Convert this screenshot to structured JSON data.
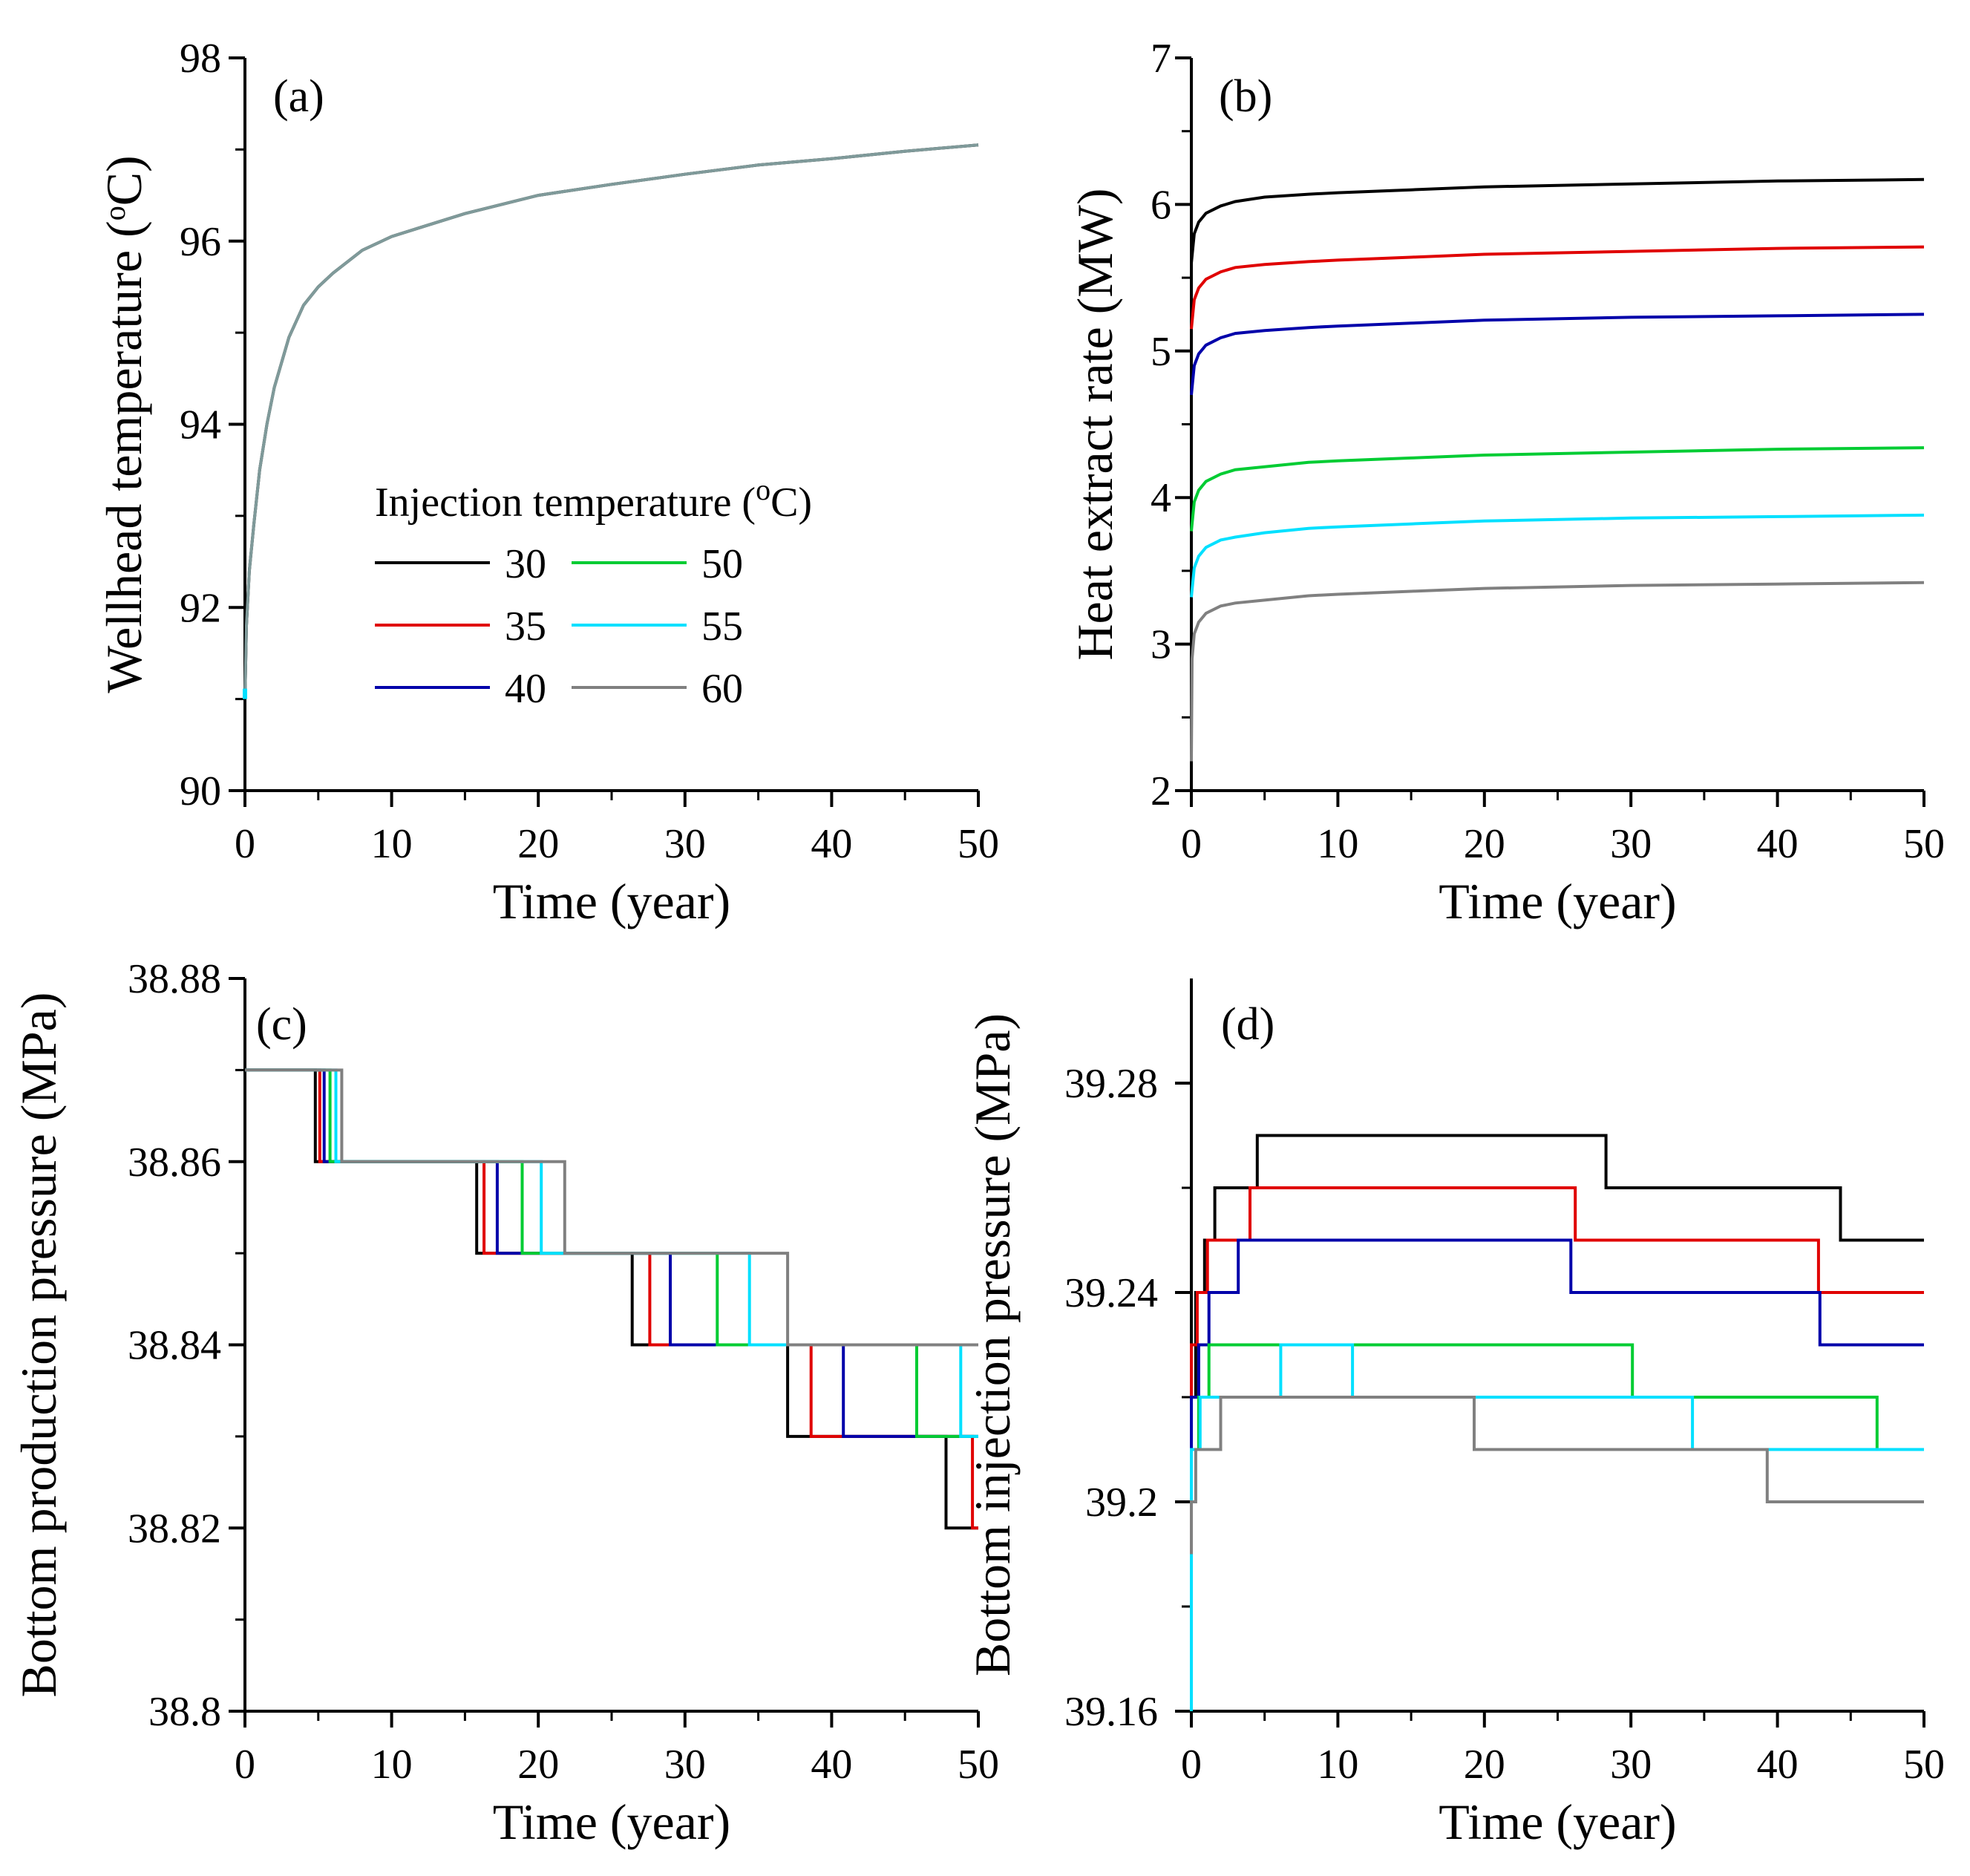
{
  "chart_data": [
    {
      "id": "a",
      "type": "line",
      "panel_label": "(a)",
      "xlabel": "Time (year)",
      "ylabel": "Wellhead temperature (°C)",
      "ylabel_parts": {
        "pre": "Wellhead temperature (",
        "sup": "o",
        "post": "C)"
      },
      "xlim": [
        0,
        50
      ],
      "ylim": [
        90,
        98
      ],
      "xticks": [
        0,
        10,
        20,
        30,
        40,
        50
      ],
      "yticks": [
        90,
        92,
        94,
        96,
        98
      ],
      "series": [
        {
          "name": "30",
          "color": "#000000",
          "x": [
            0,
            0.1,
            0.3,
            0.6,
            1,
            1.5,
            2,
            3,
            4,
            5,
            6,
            8,
            10,
            12,
            15,
            20,
            25,
            30,
            35,
            40,
            45,
            50
          ],
          "y": [
            91.0,
            91.8,
            92.4,
            92.9,
            93.5,
            94.0,
            94.4,
            94.95,
            95.3,
            95.5,
            95.65,
            95.9,
            96.05,
            96.15,
            96.3,
            96.5,
            96.62,
            96.73,
            96.83,
            96.9,
            96.98,
            97.05
          ]
        },
        {
          "name": "60",
          "color": "#7f9a9a",
          "x": [
            0,
            0.1,
            0.3,
            0.6,
            1,
            1.5,
            2,
            3,
            4,
            5,
            6,
            8,
            10,
            12,
            15,
            20,
            25,
            30,
            35,
            40,
            45,
            50
          ],
          "y": [
            91.0,
            91.8,
            92.4,
            92.9,
            93.5,
            94.0,
            94.4,
            94.95,
            95.3,
            95.5,
            95.65,
            95.9,
            96.05,
            96.15,
            96.3,
            96.5,
            96.62,
            96.73,
            96.83,
            96.9,
            96.98,
            97.05
          ]
        }
      ],
      "start_marker": {
        "x": 0,
        "y": 91.0,
        "color": "#00e0ff"
      },
      "legend": {
        "title": "Injection temperature (°C)",
        "title_parts": {
          "pre": "Injection temperature (",
          "sup": "o",
          "post": "C)"
        },
        "placement": "center-right",
        "entries": [
          {
            "label": "30",
            "color": "#000000"
          },
          {
            "label": "50",
            "color": "#00cc33"
          },
          {
            "label": "35",
            "color": "#e00000"
          },
          {
            "label": "55",
            "color": "#00e0ff"
          },
          {
            "label": "40",
            "color": "#0000aa"
          },
          {
            "label": "60",
            "color": "#808080"
          }
        ]
      }
    },
    {
      "id": "b",
      "type": "line",
      "panel_label": "(b)",
      "xlabel": "Time (year)",
      "ylabel": "Heat extract rate (MW)",
      "xlim": [
        0,
        50
      ],
      "ylim": [
        2,
        7
      ],
      "xticks": [
        0,
        10,
        20,
        30,
        40,
        50
      ],
      "yticks": [
        2,
        3,
        4,
        5,
        6,
        7
      ],
      "series": [
        {
          "name": "30",
          "color": "#000000",
          "x": [
            0,
            0.2,
            0.5,
            1,
            2,
            3,
            5,
            8,
            10,
            15,
            20,
            30,
            40,
            50
          ],
          "y": [
            5.6,
            5.8,
            5.88,
            5.94,
            5.99,
            6.02,
            6.05,
            6.07,
            6.08,
            6.1,
            6.12,
            6.14,
            6.16,
            6.17
          ]
        },
        {
          "name": "35",
          "color": "#e00000",
          "x": [
            0,
            0.2,
            0.5,
            1,
            2,
            3,
            5,
            8,
            10,
            15,
            20,
            30,
            40,
            50
          ],
          "y": [
            5.15,
            5.35,
            5.43,
            5.49,
            5.54,
            5.57,
            5.59,
            5.61,
            5.62,
            5.64,
            5.66,
            5.68,
            5.7,
            5.71
          ]
        },
        {
          "name": "40",
          "color": "#0000aa",
          "x": [
            0,
            0.2,
            0.5,
            1,
            2,
            3,
            5,
            8,
            10,
            15,
            20,
            30,
            40,
            50
          ],
          "y": [
            4.7,
            4.9,
            4.98,
            5.04,
            5.09,
            5.12,
            5.14,
            5.16,
            5.17,
            5.19,
            5.21,
            5.23,
            5.24,
            5.25
          ]
        },
        {
          "name": "50",
          "color": "#00cc33",
          "x": [
            0,
            0.2,
            0.5,
            1,
            2,
            3,
            5,
            8,
            10,
            15,
            20,
            30,
            40,
            50
          ],
          "y": [
            3.77,
            3.97,
            4.05,
            4.11,
            4.16,
            4.19,
            4.21,
            4.24,
            4.25,
            4.27,
            4.29,
            4.31,
            4.33,
            4.34
          ]
        },
        {
          "name": "55",
          "color": "#00e0ff",
          "x": [
            0,
            0.2,
            0.5,
            1,
            2,
            3,
            5,
            8,
            10,
            15,
            20,
            30,
            40,
            50
          ],
          "y": [
            3.32,
            3.52,
            3.6,
            3.66,
            3.71,
            3.73,
            3.76,
            3.79,
            3.8,
            3.82,
            3.84,
            3.86,
            3.87,
            3.88
          ]
        },
        {
          "name": "60",
          "color": "#808080",
          "x": [
            0,
            0.05,
            0.2,
            0.5,
            1,
            2,
            3,
            5,
            8,
            10,
            15,
            20,
            30,
            40,
            50
          ],
          "y": [
            2.2,
            2.9,
            3.07,
            3.15,
            3.21,
            3.26,
            3.28,
            3.3,
            3.33,
            3.34,
            3.36,
            3.38,
            3.4,
            3.41,
            3.42
          ]
        }
      ]
    },
    {
      "id": "c",
      "type": "line",
      "panel_label": "(c)",
      "xlabel": "Time (year)",
      "ylabel": "Bottom production pressure (MPa)",
      "xlim": [
        0,
        50
      ],
      "ylim": [
        38.8,
        38.88
      ],
      "xticks": [
        0,
        10,
        20,
        30,
        40,
        50
      ],
      "yticks": [
        38.8,
        38.82,
        38.84,
        38.86,
        38.88
      ],
      "ytick_labels": [
        "38.8",
        "38.82",
        "38.84",
        "38.86",
        "38.88"
      ],
      "series": [
        {
          "name": "30",
          "color": "#000000",
          "x": [
            0,
            4.8,
            4.8,
            15.8,
            15.8,
            26.4,
            26.4,
            37.0,
            37.0,
            47.8,
            47.8,
            50
          ],
          "y": [
            38.87,
            38.87,
            38.86,
            38.86,
            38.85,
            38.85,
            38.84,
            38.84,
            38.83,
            38.83,
            38.82,
            38.82
          ]
        },
        {
          "name": "35",
          "color": "#e00000",
          "x": [
            0,
            5.1,
            5.1,
            16.3,
            16.3,
            27.6,
            27.6,
            38.6,
            38.6,
            49.6,
            49.6,
            50
          ],
          "y": [
            38.87,
            38.87,
            38.86,
            38.86,
            38.85,
            38.85,
            38.84,
            38.84,
            38.83,
            38.83,
            38.82,
            38.82
          ]
        },
        {
          "name": "40",
          "color": "#0000aa",
          "x": [
            0,
            5.4,
            5.4,
            17.2,
            17.2,
            29.0,
            29.0,
            40.8,
            40.8,
            50
          ],
          "y": [
            38.87,
            38.87,
            38.86,
            38.86,
            38.85,
            38.85,
            38.84,
            38.84,
            38.83,
            38.83
          ]
        },
        {
          "name": "50",
          "color": "#00cc33",
          "x": [
            0,
            5.8,
            5.8,
            18.9,
            18.9,
            32.2,
            32.2,
            45.8,
            45.8,
            50
          ],
          "y": [
            38.87,
            38.87,
            38.86,
            38.86,
            38.85,
            38.85,
            38.84,
            38.84,
            38.83,
            38.83
          ]
        },
        {
          "name": "55",
          "color": "#00e0ff",
          "x": [
            0,
            6.2,
            6.2,
            20.2,
            20.2,
            34.4,
            34.4,
            48.8,
            48.8,
            50
          ],
          "y": [
            38.87,
            38.87,
            38.86,
            38.86,
            38.85,
            38.85,
            38.84,
            38.84,
            38.83,
            38.83
          ]
        },
        {
          "name": "60",
          "color": "#808080",
          "x": [
            0,
            6.6,
            6.6,
            21.8,
            21.8,
            37.0,
            37.0,
            50
          ],
          "y": [
            38.87,
            38.87,
            38.86,
            38.86,
            38.85,
            38.85,
            38.84,
            38.84
          ]
        }
      ]
    },
    {
      "id": "d",
      "type": "line",
      "panel_label": "(d)",
      "xlabel": "Time (year)",
      "ylabel": "Bottom injection pressure (MPa)",
      "xlim": [
        0,
        50
      ],
      "ylim": [
        39.16,
        39.3
      ],
      "xticks": [
        0,
        10,
        20,
        30,
        40,
        50
      ],
      "yticks": [
        39.16,
        39.2,
        39.24,
        39.28
      ],
      "ytick_labels": [
        "39.16",
        "39.2",
        "39.24",
        "39.28"
      ],
      "minor_yticks": [
        39.18,
        39.22,
        39.26
      ],
      "series": [
        {
          "name": "30",
          "color": "#000000",
          "x": [
            0,
            0,
            0.3,
            0.3,
            0.9,
            0.9,
            1.6,
            1.6,
            4.5,
            4.5,
            28.3,
            28.3,
            44.3,
            44.3,
            50
          ],
          "y": [
            39.2,
            39.22,
            39.22,
            39.24,
            39.24,
            39.25,
            39.25,
            39.26,
            39.26,
            39.27,
            39.27,
            39.26,
            39.26,
            39.25,
            39.25
          ]
        },
        {
          "name": "35",
          "color": "#e00000",
          "x": [
            0,
            0,
            0.4,
            0.4,
            1.1,
            1.1,
            4.0,
            4.0,
            26.2,
            26.2,
            42.8,
            42.8,
            50
          ],
          "y": [
            39.2,
            39.23,
            39.23,
            39.24,
            39.24,
            39.25,
            39.25,
            39.26,
            39.26,
            39.25,
            39.25,
            39.24,
            39.24
          ]
        },
        {
          "name": "40",
          "color": "#0000aa",
          "x": [
            0,
            0,
            0.5,
            0.5,
            1.2,
            1.2,
            3.2,
            3.2,
            25.9,
            25.9,
            42.9,
            42.9,
            50
          ],
          "y": [
            39.2,
            39.22,
            39.22,
            39.23,
            39.23,
            39.24,
            39.24,
            39.25,
            39.25,
            39.24,
            39.24,
            39.23,
            39.23
          ]
        },
        {
          "name": "50",
          "color": "#00cc33",
          "x": [
            0,
            0,
            0.5,
            0.5,
            1.2,
            1.2,
            30.1,
            30.1,
            46.8,
            46.8,
            50
          ],
          "y": [
            39.2,
            39.21,
            39.21,
            39.22,
            39.22,
            39.23,
            39.23,
            39.22,
            39.22,
            39.21,
            39.21
          ]
        },
        {
          "name": "55",
          "color": "#00e0ff",
          "x": [
            0,
            0,
            0.6,
            0.6,
            6.1,
            6.1,
            11.0,
            11.0,
            34.2,
            34.2,
            50
          ],
          "y": [
            39.16,
            39.21,
            39.21,
            39.22,
            39.22,
            39.23,
            39.23,
            39.22,
            39.22,
            39.21,
            39.21
          ]
        },
        {
          "name": "60",
          "color": "#808080",
          "x": [
            0,
            0,
            0.3,
            0.3,
            2.0,
            2.0,
            19.3,
            19.3,
            39.3,
            39.3,
            50
          ],
          "y": [
            39.19,
            39.2,
            39.2,
            39.21,
            39.21,
            39.22,
            39.22,
            39.21,
            39.21,
            39.2,
            39.2
          ]
        }
      ]
    }
  ]
}
